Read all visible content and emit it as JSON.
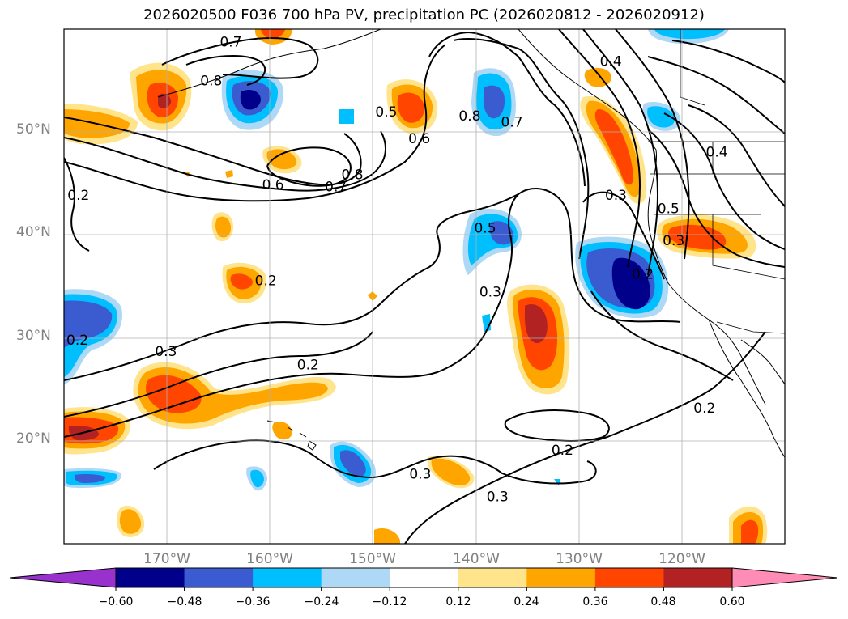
{
  "title": "2026020500 F036 700 hPa PV, precipitation PC (2026020812 - 2026020912)",
  "map": {
    "projection": "equirectangular",
    "lon_range": [
      -180,
      -110
    ],
    "lat_range": [
      10,
      60
    ],
    "lat_ticks": [
      {
        "value": 20,
        "label": "20°N"
      },
      {
        "value": 30,
        "label": "30°N"
      },
      {
        "value": 40,
        "label": "40°N"
      },
      {
        "value": 50,
        "label": "50°N"
      }
    ],
    "lon_ticks": [
      {
        "value": -170,
        "label": "170°W"
      },
      {
        "value": -160,
        "label": "160°W"
      },
      {
        "value": -150,
        "label": "150°W"
      },
      {
        "value": -140,
        "label": "140°W"
      },
      {
        "value": -130,
        "label": "130°W"
      },
      {
        "value": -120,
        "label": "120°W"
      }
    ],
    "contour_labels": [
      {
        "text": "0.7",
        "lon": -163.8,
        "lat": 58.8
      },
      {
        "text": "0.8",
        "lon": -165.7,
        "lat": 55.0
      },
      {
        "text": "0.8",
        "lon": -140.6,
        "lat": 51.6
      },
      {
        "text": "0.7",
        "lon": -136.5,
        "lat": 51.0
      },
      {
        "text": "0.5",
        "lon": -148.7,
        "lat": 52.0
      },
      {
        "text": "0.6",
        "lon": -145.5,
        "lat": 49.4
      },
      {
        "text": "0.4",
        "lon": -126.9,
        "lat": 56.9
      },
      {
        "text": "0.4",
        "lon": -116.6,
        "lat": 48.1
      },
      {
        "text": "0.8",
        "lon": -152.0,
        "lat": 45.9
      },
      {
        "text": "0.7",
        "lon": -153.6,
        "lat": 44.7
      },
      {
        "text": "0.6",
        "lon": -159.7,
        "lat": 44.9
      },
      {
        "text": "0.2",
        "lon": -178.6,
        "lat": 43.9
      },
      {
        "text": "0.3",
        "lon": -126.4,
        "lat": 43.9
      },
      {
        "text": "0.5",
        "lon": -121.3,
        "lat": 42.6
      },
      {
        "text": "0.3",
        "lon": -120.8,
        "lat": 39.5
      },
      {
        "text": "0.5",
        "lon": -139.1,
        "lat": 40.7
      },
      {
        "text": "0.2",
        "lon": -123.8,
        "lat": 36.2
      },
      {
        "text": "0.2",
        "lon": -160.4,
        "lat": 35.6
      },
      {
        "text": "0.3",
        "lon": -138.6,
        "lat": 34.5
      },
      {
        "text": "0.2",
        "lon": -178.7,
        "lat": 29.8
      },
      {
        "text": "0.3",
        "lon": -170.1,
        "lat": 28.7
      },
      {
        "text": "0.2",
        "lon": -156.3,
        "lat": 27.4
      },
      {
        "text": "0.2",
        "lon": -117.8,
        "lat": 23.2
      },
      {
        "text": "0.2",
        "lon": -131.6,
        "lat": 19.1
      },
      {
        "text": "0.3",
        "lon": -145.4,
        "lat": 16.8
      },
      {
        "text": "0.3",
        "lon": -137.9,
        "lat": 14.6
      }
    ]
  },
  "colorbar": {
    "colors": [
      "#9932cc",
      "#00008b",
      "#3b5bd0",
      "#00bfff",
      "#add8f6",
      "#ffffff",
      "#ffe48c",
      "#ffa500",
      "#ff4500",
      "#b22222",
      "#ff8cb4"
    ],
    "tick_labels": [
      "−0.60",
      "−0.48",
      "−0.36",
      "−0.24",
      "−0.12",
      "0.12",
      "0.24",
      "0.36",
      "0.48",
      "0.60"
    ]
  }
}
